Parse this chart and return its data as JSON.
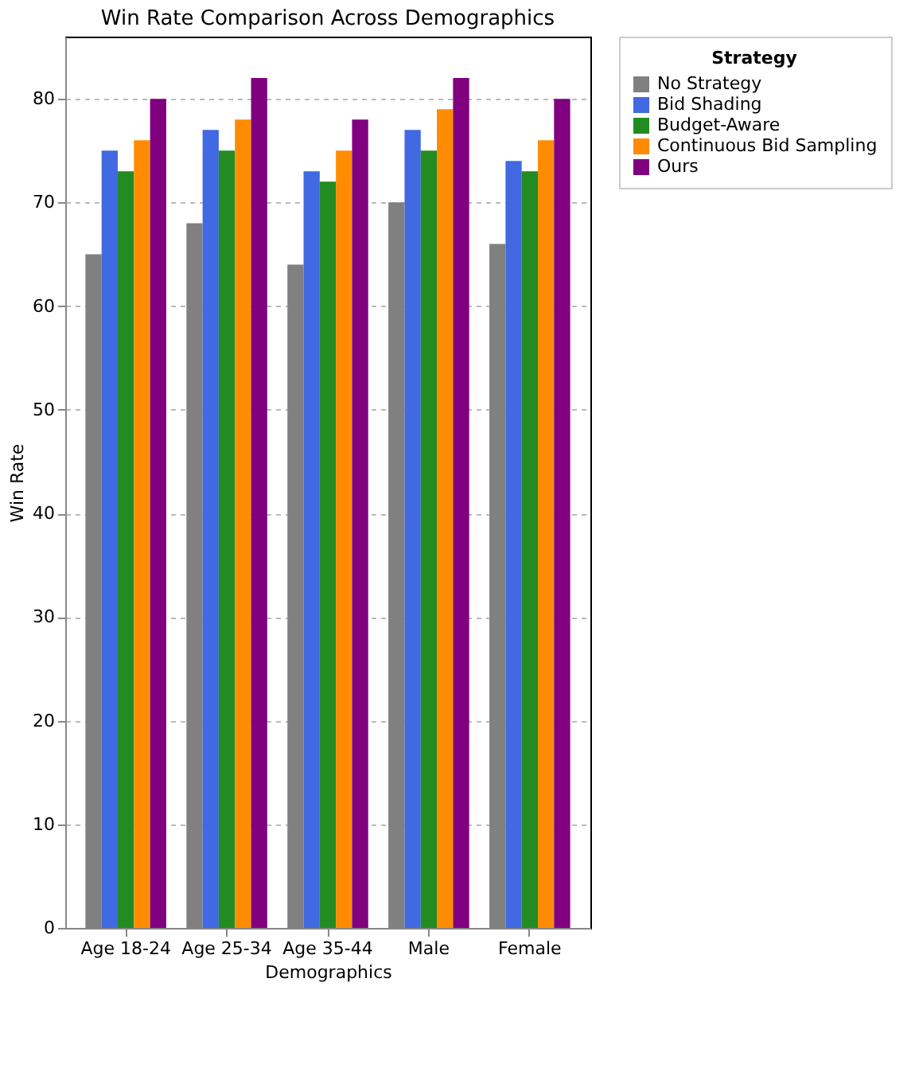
{
  "chart_data": {
    "type": "bar",
    "title": "Win Rate Comparison Across Demographics",
    "xlabel": "Demographics",
    "ylabel": "Win Rate",
    "legend_title": "Strategy",
    "categories": [
      "Age 18-24",
      "Age 25-34",
      "Age 35-44",
      "Male",
      "Female"
    ],
    "series": [
      {
        "name": "No Strategy",
        "color": "#808080",
        "values": [
          65,
          68,
          64,
          70,
          66
        ]
      },
      {
        "name": "Bid Shading",
        "color": "#4169e1",
        "values": [
          75,
          77,
          73,
          77,
          74
        ]
      },
      {
        "name": "Budget-Aware",
        "color": "#228b22",
        "values": [
          73,
          75,
          72,
          75,
          73
        ]
      },
      {
        "name": "Continuous Bid Sampling",
        "color": "#ff8c00",
        "values": [
          76,
          78,
          75,
          79,
          76
        ]
      },
      {
        "name": "Ours",
        "color": "#800080",
        "values": [
          80,
          82,
          78,
          82,
          80
        ]
      }
    ],
    "ylim": [
      0,
      86
    ],
    "yticks": [
      0,
      10,
      20,
      30,
      40,
      50,
      60,
      70,
      80
    ],
    "grid": "y",
    "legend": "top right"
  }
}
